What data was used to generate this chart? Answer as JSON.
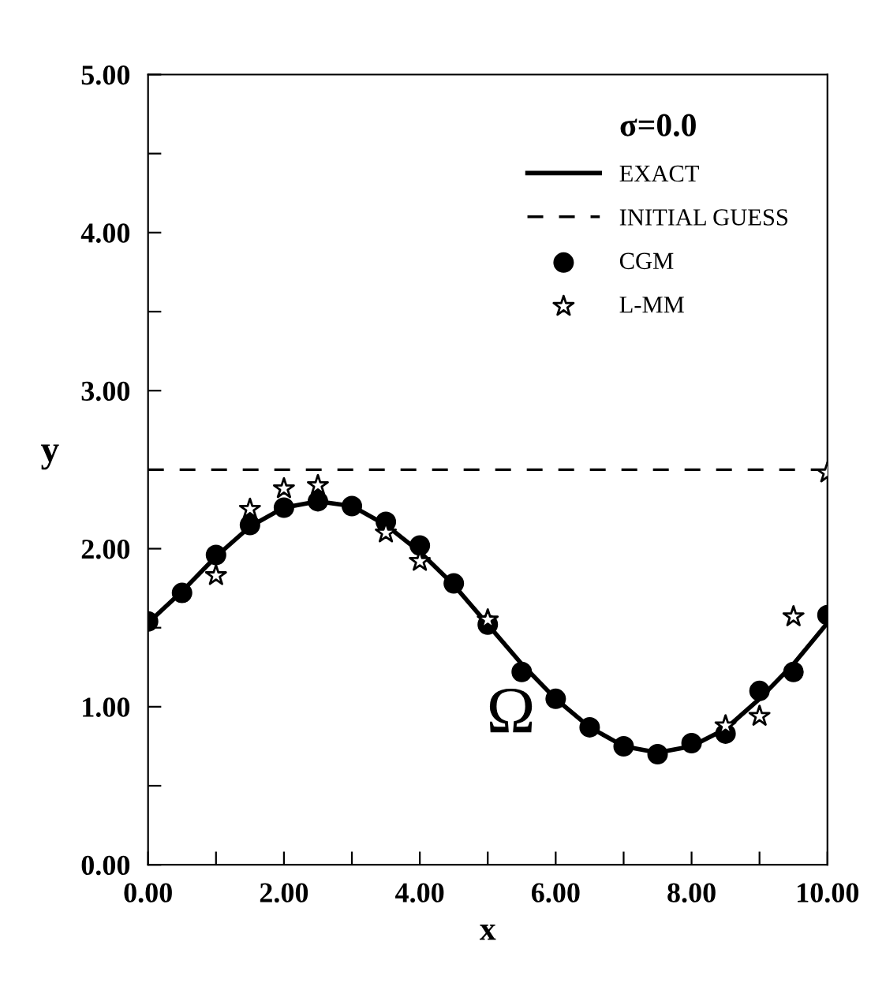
{
  "chart_data": {
    "type": "line",
    "xlabel": "x",
    "ylabel": "y",
    "legend_title": "σ=0.0",
    "legend": "top right",
    "grid": false,
    "annotations": [
      "Ω"
    ],
    "xlim": [
      0,
      10
    ],
    "ylim": [
      0,
      5
    ],
    "xticks": [
      {
        "value": 0,
        "label": "0.00"
      },
      {
        "value": 1,
        "label": null
      },
      {
        "value": 2,
        "label": "2.00"
      },
      {
        "value": 3,
        "label": null
      },
      {
        "value": 4,
        "label": "4.00"
      },
      {
        "value": 5,
        "label": null
      },
      {
        "value": 6,
        "label": "6.00"
      },
      {
        "value": 7,
        "label": null
      },
      {
        "value": 8,
        "label": "8.00"
      },
      {
        "value": 9,
        "label": null
      },
      {
        "value": 10,
        "label": "10.00"
      }
    ],
    "yticks": [
      {
        "value": 0,
        "label": "0.00"
      },
      {
        "value": 0.5,
        "label": null
      },
      {
        "value": 1,
        "label": "1.00"
      },
      {
        "value": 1.5,
        "label": null
      },
      {
        "value": 2,
        "label": "2.00"
      },
      {
        "value": 2.5,
        "label": null
      },
      {
        "value": 3,
        "label": "3.00"
      },
      {
        "value": 3.5,
        "label": null
      },
      {
        "value": 4,
        "label": "4.00"
      },
      {
        "value": 4.5,
        "label": null
      },
      {
        "value": 5,
        "label": "5.00"
      }
    ],
    "series": [
      {
        "name": "EXACT",
        "color": "#000000",
        "line_style": "solid",
        "marker": "none",
        "x": [
          0,
          0.5,
          1,
          1.5,
          2,
          2.5,
          3,
          3.5,
          4,
          4.5,
          5,
          5.5,
          6,
          6.5,
          7,
          7.5,
          8,
          8.5,
          9,
          9.5,
          10
        ],
        "values": [
          1.53,
          1.73,
          1.95,
          2.14,
          2.26,
          2.3,
          2.27,
          2.15,
          1.98,
          1.77,
          1.52,
          1.27,
          1.05,
          0.87,
          0.75,
          0.71,
          0.75,
          0.86,
          1.05,
          1.27,
          1.53
        ]
      },
      {
        "name": "INITIAL GUESS",
        "color": "#000000",
        "line_style": "dashed",
        "marker": "none",
        "x": [
          0,
          10
        ],
        "values": [
          2.5,
          2.5
        ]
      },
      {
        "name": "CGM",
        "type": "scatter",
        "color": "#000000",
        "marker": "circle",
        "x": [
          0,
          0.5,
          1,
          1.5,
          2,
          2.5,
          3,
          3.5,
          4,
          4.5,
          5,
          5.5,
          6,
          6.5,
          7,
          7.5,
          8,
          8.5,
          9,
          9.5,
          10
        ],
        "values": [
          1.54,
          1.72,
          1.96,
          2.15,
          2.26,
          2.3,
          2.27,
          2.17,
          2.02,
          1.78,
          1.52,
          1.22,
          1.05,
          0.87,
          0.75,
          0.7,
          0.77,
          0.83,
          1.1,
          1.22,
          1.58
        ]
      },
      {
        "name": "L-MM",
        "type": "scatter",
        "color": "#000000",
        "marker": "star",
        "x": [
          1,
          1.5,
          2,
          2.5,
          3.5,
          4,
          5,
          8.5,
          9,
          9.5,
          10
        ],
        "values": [
          1.83,
          2.25,
          2.38,
          2.4,
          2.1,
          1.92,
          1.55,
          0.88,
          0.94,
          1.57,
          2.48
        ]
      }
    ]
  }
}
